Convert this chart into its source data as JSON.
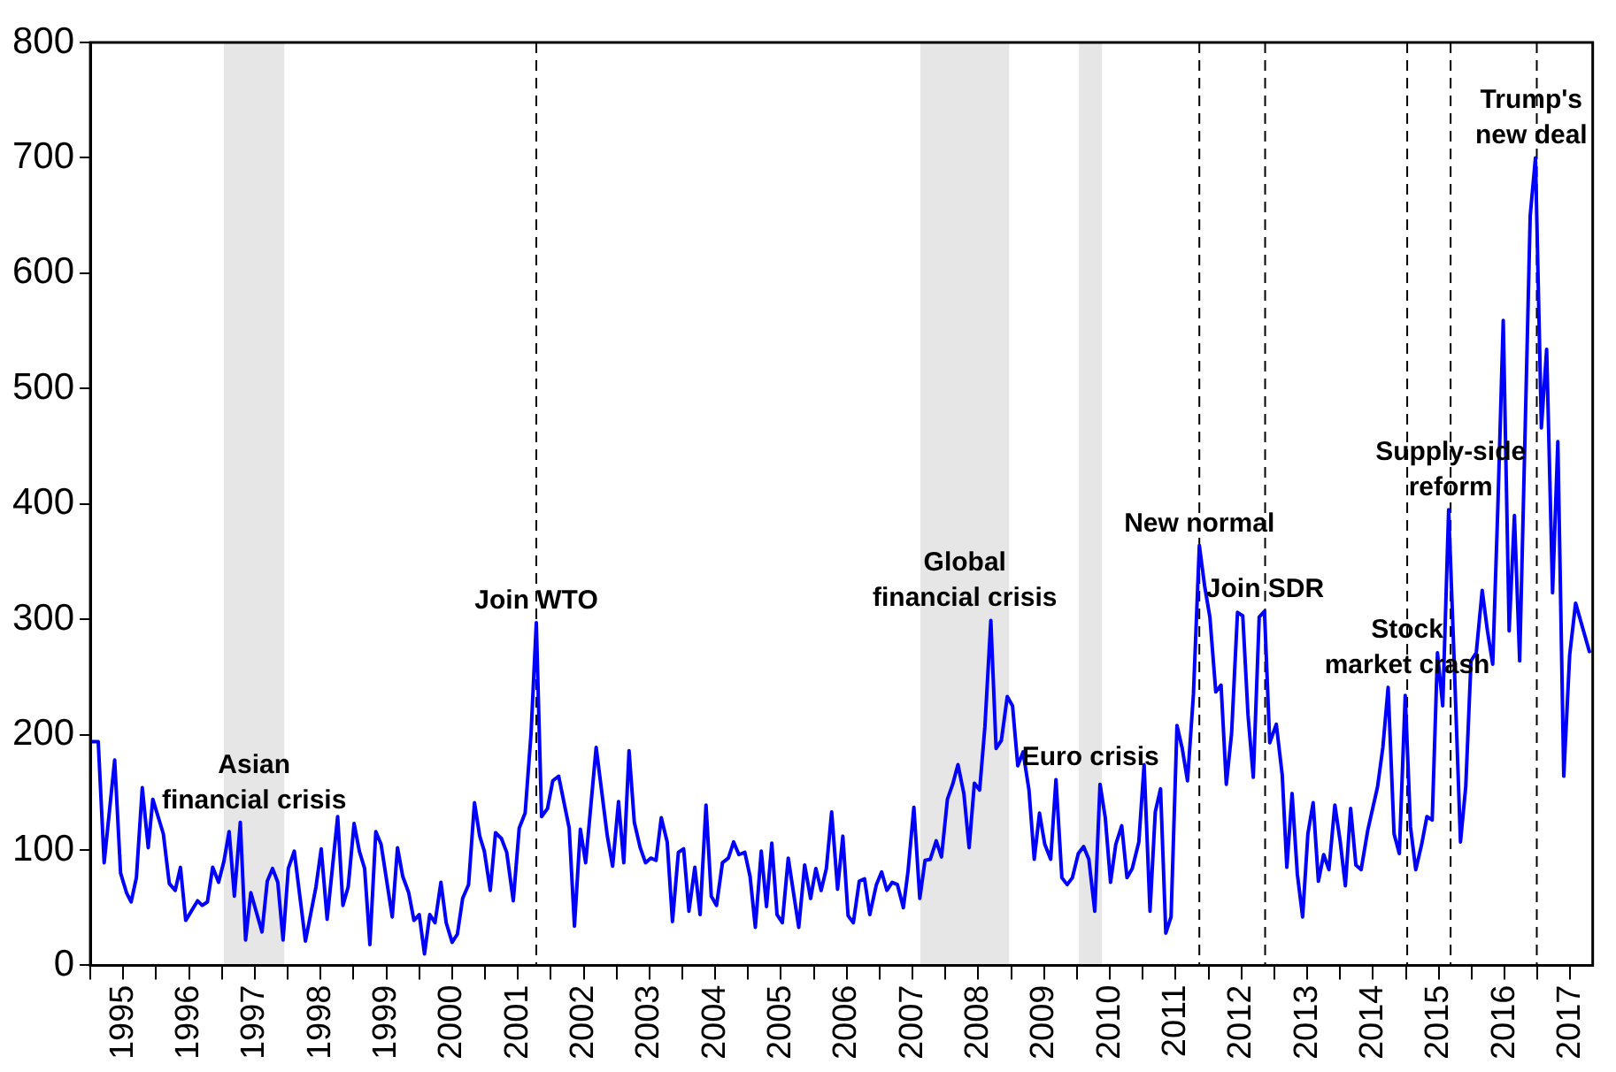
{
  "chart_data": {
    "type": "line",
    "color": "#0000ff",
    "marker": "none",
    "legend": false,
    "x": [
      1995.03,
      1995.12,
      1995.21,
      1995.37,
      1995.46,
      1995.55,
      1995.62,
      1995.7,
      1995.79,
      1995.88,
      1995.95,
      1996.11,
      1996.2,
      1996.29,
      1996.37,
      1996.45,
      1996.63,
      1996.7,
      1996.78,
      1996.86,
      1996.95,
      1997.03,
      1997.11,
      1997.19,
      1997.28,
      1997.36,
      1997.44,
      1997.61,
      1997.69,
      1997.77,
      1997.85,
      1997.93,
      1998.01,
      1998.1,
      1998.27,
      1998.43,
      1998.51,
      1998.6,
      1998.76,
      1998.84,
      1998.92,
      1999.01,
      1999.09,
      1999.17,
      1999.25,
      1999.34,
      1999.42,
      1999.59,
      1999.67,
      1999.75,
      1999.84,
      1999.92,
      2000.0,
      2000.08,
      2000.16,
      2000.24,
      2000.33,
      2000.41,
      2000.5,
      2000.58,
      2000.66,
      2000.75,
      2000.84,
      2000.92,
      2000.99,
      2001.08,
      2001.16,
      2001.25,
      2001.33,
      2001.43,
      2001.52,
      2001.61,
      2001.7,
      2001.78,
      2001.86,
      2001.95,
      2002.03,
      2002.12,
      2002.28,
      2002.36,
      2002.45,
      2002.53,
      2002.69,
      2002.86,
      2002.94,
      2003.03,
      2003.11,
      2003.19,
      2003.27,
      2003.36,
      2003.44,
      2003.52,
      2003.6,
      2003.68,
      2003.77,
      2003.85,
      2003.94,
      2004.02,
      2004.1,
      2004.19,
      2004.27,
      2004.36,
      2004.44,
      2004.52,
      2004.61,
      2004.7,
      2004.78,
      2004.86,
      2004.95,
      2005.03,
      2005.11,
      2005.2,
      2005.28,
      2005.36,
      2005.44,
      2005.52,
      2005.61,
      2005.77,
      2005.86,
      2005.95,
      2006.03,
      2006.11,
      2006.19,
      2006.27,
      2006.36,
      2006.44,
      2006.52,
      2006.6,
      2006.69,
      2006.77,
      2006.85,
      2006.95,
      2007.03,
      2007.11,
      2007.19,
      2007.27,
      2007.36,
      2007.43,
      2007.52,
      2007.61,
      2007.69,
      2007.77,
      2007.86,
      2007.94,
      2008.03,
      2008.11,
      2008.19,
      2008.28,
      2008.36,
      2008.44,
      2008.52,
      2008.6,
      2008.69,
      2008.77,
      2008.85,
      2008.94,
      2009.02,
      2009.1,
      2009.18,
      2009.27,
      2009.35,
      2009.43,
      2009.51,
      2009.6,
      2009.68,
      2009.77,
      2009.85,
      2009.93,
      2010.02,
      2010.1,
      2010.18,
      2010.27,
      2010.35,
      2010.43,
      2010.51,
      2010.59,
      2010.68,
      2010.76,
      2010.84,
      2010.94,
      2011.02,
      2011.11,
      2011.19,
      2011.27,
      2011.35,
      2011.43,
      2011.52,
      2011.6,
      2011.68,
      2011.77,
      2011.86,
      2011.94,
      2012.02,
      2012.11,
      2012.19,
      2012.27,
      2012.35,
      2012.44,
      2012.52,
      2012.6,
      2012.68,
      2012.77,
      2012.85,
      2012.93,
      2013.03,
      2013.12,
      2013.19,
      2013.27,
      2013.35,
      2013.43,
      2013.51,
      2013.59,
      2013.67,
      2013.75,
      2013.83,
      2013.92,
      2014.0,
      2014.08,
      2014.16,
      2014.24,
      2014.32,
      2014.42,
      2014.57,
      2014.65,
      2014.73,
      2014.82,
      2014.9,
      2014.99,
      2015.07,
      2015.15,
      2015.24,
      2015.32,
      2015.4,
      2015.48,
      2015.56,
      2015.65,
      2015.73,
      2015.83,
      2015.91,
      2015.99,
      2016.07,
      2016.16,
      2016.24,
      2016.32,
      2016.4,
      2016.48,
      2016.57,
      2016.65,
      2016.73,
      2016.81,
      2016.89,
      2016.97,
      2017.06,
      2017.14,
      2017.23,
      2017.31,
      2017.4,
      2017.49,
      2017.58,
      2017.79
    ],
    "values": [
      194,
      194,
      89,
      178,
      80,
      63,
      55,
      76,
      154,
      102,
      144,
      114,
      71,
      65,
      85,
      39,
      56,
      52,
      55,
      85,
      72,
      90,
      116,
      60,
      124,
      22,
      63,
      29,
      73,
      84,
      72,
      22,
      84,
      99,
      21,
      68,
      101,
      40,
      129,
      52,
      68,
      123,
      99,
      84,
      18,
      116,
      105,
      42,
      102,
      77,
      63,
      39,
      44,
      10,
      44,
      37,
      72,
      37,
      20,
      27,
      58,
      70,
      141,
      112,
      99,
      65,
      115,
      110,
      98,
      56,
      119,
      132,
      201,
      297,
      129,
      136,
      160,
      164,
      119,
      34,
      118,
      89,
      189,
      112,
      86,
      142,
      89,
      186,
      124,
      102,
      89,
      93,
      91,
      128,
      107,
      38,
      98,
      101,
      47,
      85,
      44,
      139,
      60,
      52,
      89,
      93,
      107,
      96,
      98,
      77,
      33,
      99,
      51,
      106,
      44,
      37,
      93,
      33,
      87,
      58,
      84,
      65,
      84,
      133,
      66,
      112,
      43,
      37,
      73,
      75,
      44,
      70,
      81,
      65,
      72,
      70,
      50,
      81,
      137,
      58,
      91,
      92,
      108,
      94,
      144,
      157,
      174,
      149,
      102,
      158,
      152,
      207,
      299,
      188,
      195,
      233,
      225,
      173,
      185,
      152,
      92,
      132,
      105,
      92,
      161,
      76,
      70,
      76,
      97,
      103,
      92,
      47,
      157,
      128,
      72,
      105,
      121,
      76,
      84,
      107,
      174,
      47,
      133,
      153,
      28,
      42,
      208,
      188,
      160,
      235,
      364,
      329,
      302,
      237,
      243,
      157,
      201,
      306,
      303,
      217,
      163,
      302,
      307,
      193,
      209,
      165,
      85,
      149,
      79,
      42,
      114,
      141,
      73,
      96,
      83,
      139,
      108,
      69,
      136,
      87,
      83,
      117,
      155,
      189,
      241,
      114,
      97,
      234,
      120,
      83,
      105,
      129,
      126,
      271,
      225,
      395,
      270,
      107,
      155,
      264,
      271,
      325,
      290,
      261,
      401,
      559,
      290,
      390,
      264,
      457,
      650,
      700,
      466,
      534,
      323,
      454,
      164,
      269,
      314,
      272
    ],
    "xlim": [
      1995,
      2017.84
    ],
    "xticks": [
      {
        "value": 1995,
        "label": null
      },
      {
        "value": 1995.5,
        "label": "1995"
      },
      {
        "value": 1996,
        "label": null
      },
      {
        "value": 1996.5,
        "label": "1996"
      },
      {
        "value": 1997,
        "label": null
      },
      {
        "value": 1997.5,
        "label": "1997"
      },
      {
        "value": 1998,
        "label": null
      },
      {
        "value": 1998.5,
        "label": "1998"
      },
      {
        "value": 1999,
        "label": null
      },
      {
        "value": 1999.5,
        "label": "1999"
      },
      {
        "value": 2000,
        "label": null
      },
      {
        "value": 2000.5,
        "label": "2000"
      },
      {
        "value": 2001,
        "label": null
      },
      {
        "value": 2001.5,
        "label": "2001"
      },
      {
        "value": 2002,
        "label": null
      },
      {
        "value": 2002.5,
        "label": "2002"
      },
      {
        "value": 2003,
        "label": null
      },
      {
        "value": 2003.5,
        "label": "2003"
      },
      {
        "value": 2004,
        "label": null
      },
      {
        "value": 2004.5,
        "label": "2004"
      },
      {
        "value": 2005,
        "label": null
      },
      {
        "value": 2005.5,
        "label": "2005"
      },
      {
        "value": 2006,
        "label": null
      },
      {
        "value": 2006.5,
        "label": "2006"
      },
      {
        "value": 2007,
        "label": null
      },
      {
        "value": 2007.5,
        "label": "2007"
      },
      {
        "value": 2008,
        "label": null
      },
      {
        "value": 2008.5,
        "label": "2008"
      },
      {
        "value": 2009,
        "label": null
      },
      {
        "value": 2009.5,
        "label": "2009"
      },
      {
        "value": 2010,
        "label": null
      },
      {
        "value": 2010.5,
        "label": "2010"
      },
      {
        "value": 2011,
        "label": null
      },
      {
        "value": 2011.5,
        "label": "2011"
      },
      {
        "value": 2012,
        "label": null
      },
      {
        "value": 2012.5,
        "label": "2012"
      },
      {
        "value": 2013,
        "label": null
      },
      {
        "value": 2013.5,
        "label": "2013"
      },
      {
        "value": 2014,
        "label": null
      },
      {
        "value": 2014.5,
        "label": "2014"
      },
      {
        "value": 2015,
        "label": null
      },
      {
        "value": 2015.5,
        "label": "2015"
      },
      {
        "value": 2016,
        "label": null
      },
      {
        "value": 2016.5,
        "label": "2016"
      },
      {
        "value": 2017,
        "label": null
      },
      {
        "value": 2017.5,
        "label": "2017"
      }
    ],
    "ylim": [
      0,
      800
    ],
    "yticks": [
      0,
      100,
      200,
      300,
      400,
      500,
      600,
      700,
      800
    ],
    "bands": [
      {
        "axis": "x",
        "from": 1997.03,
        "to": 1997.95,
        "label": "Asian financial crisis",
        "color": "#e6e6e6"
      },
      {
        "axis": "x",
        "from": 2007.62,
        "to": 2008.97,
        "label": "Global financial crisis",
        "color": "#e6e6e6"
      },
      {
        "axis": "x",
        "from": 2010.03,
        "to": 2010.38,
        "label": "Euro crisis",
        "color": "#e6e6e6"
      }
    ],
    "ref_lines": [
      {
        "axis": "x",
        "value": 2001.78,
        "label": "Join WTO",
        "color": "#000000",
        "line_style": "dashed"
      },
      {
        "axis": "x",
        "value": 2011.86,
        "label": "New normal",
        "color": "#000000",
        "line_style": "dashed"
      },
      {
        "axis": "x",
        "value": 2012.86,
        "label": "Join SDR",
        "color": "#000000",
        "line_style": "dashed"
      },
      {
        "axis": "x",
        "value": 2015.02,
        "label": "Stock market crash",
        "color": "#000000",
        "line_style": "dashed"
      },
      {
        "axis": "x",
        "value": 2015.68,
        "label": "Supply-side reform",
        "color": "#000000",
        "line_style": "dashed"
      },
      {
        "axis": "x",
        "value": 2016.99,
        "label": "Trump's new deal",
        "color": "#000000",
        "line_style": "dashed"
      }
    ]
  }
}
